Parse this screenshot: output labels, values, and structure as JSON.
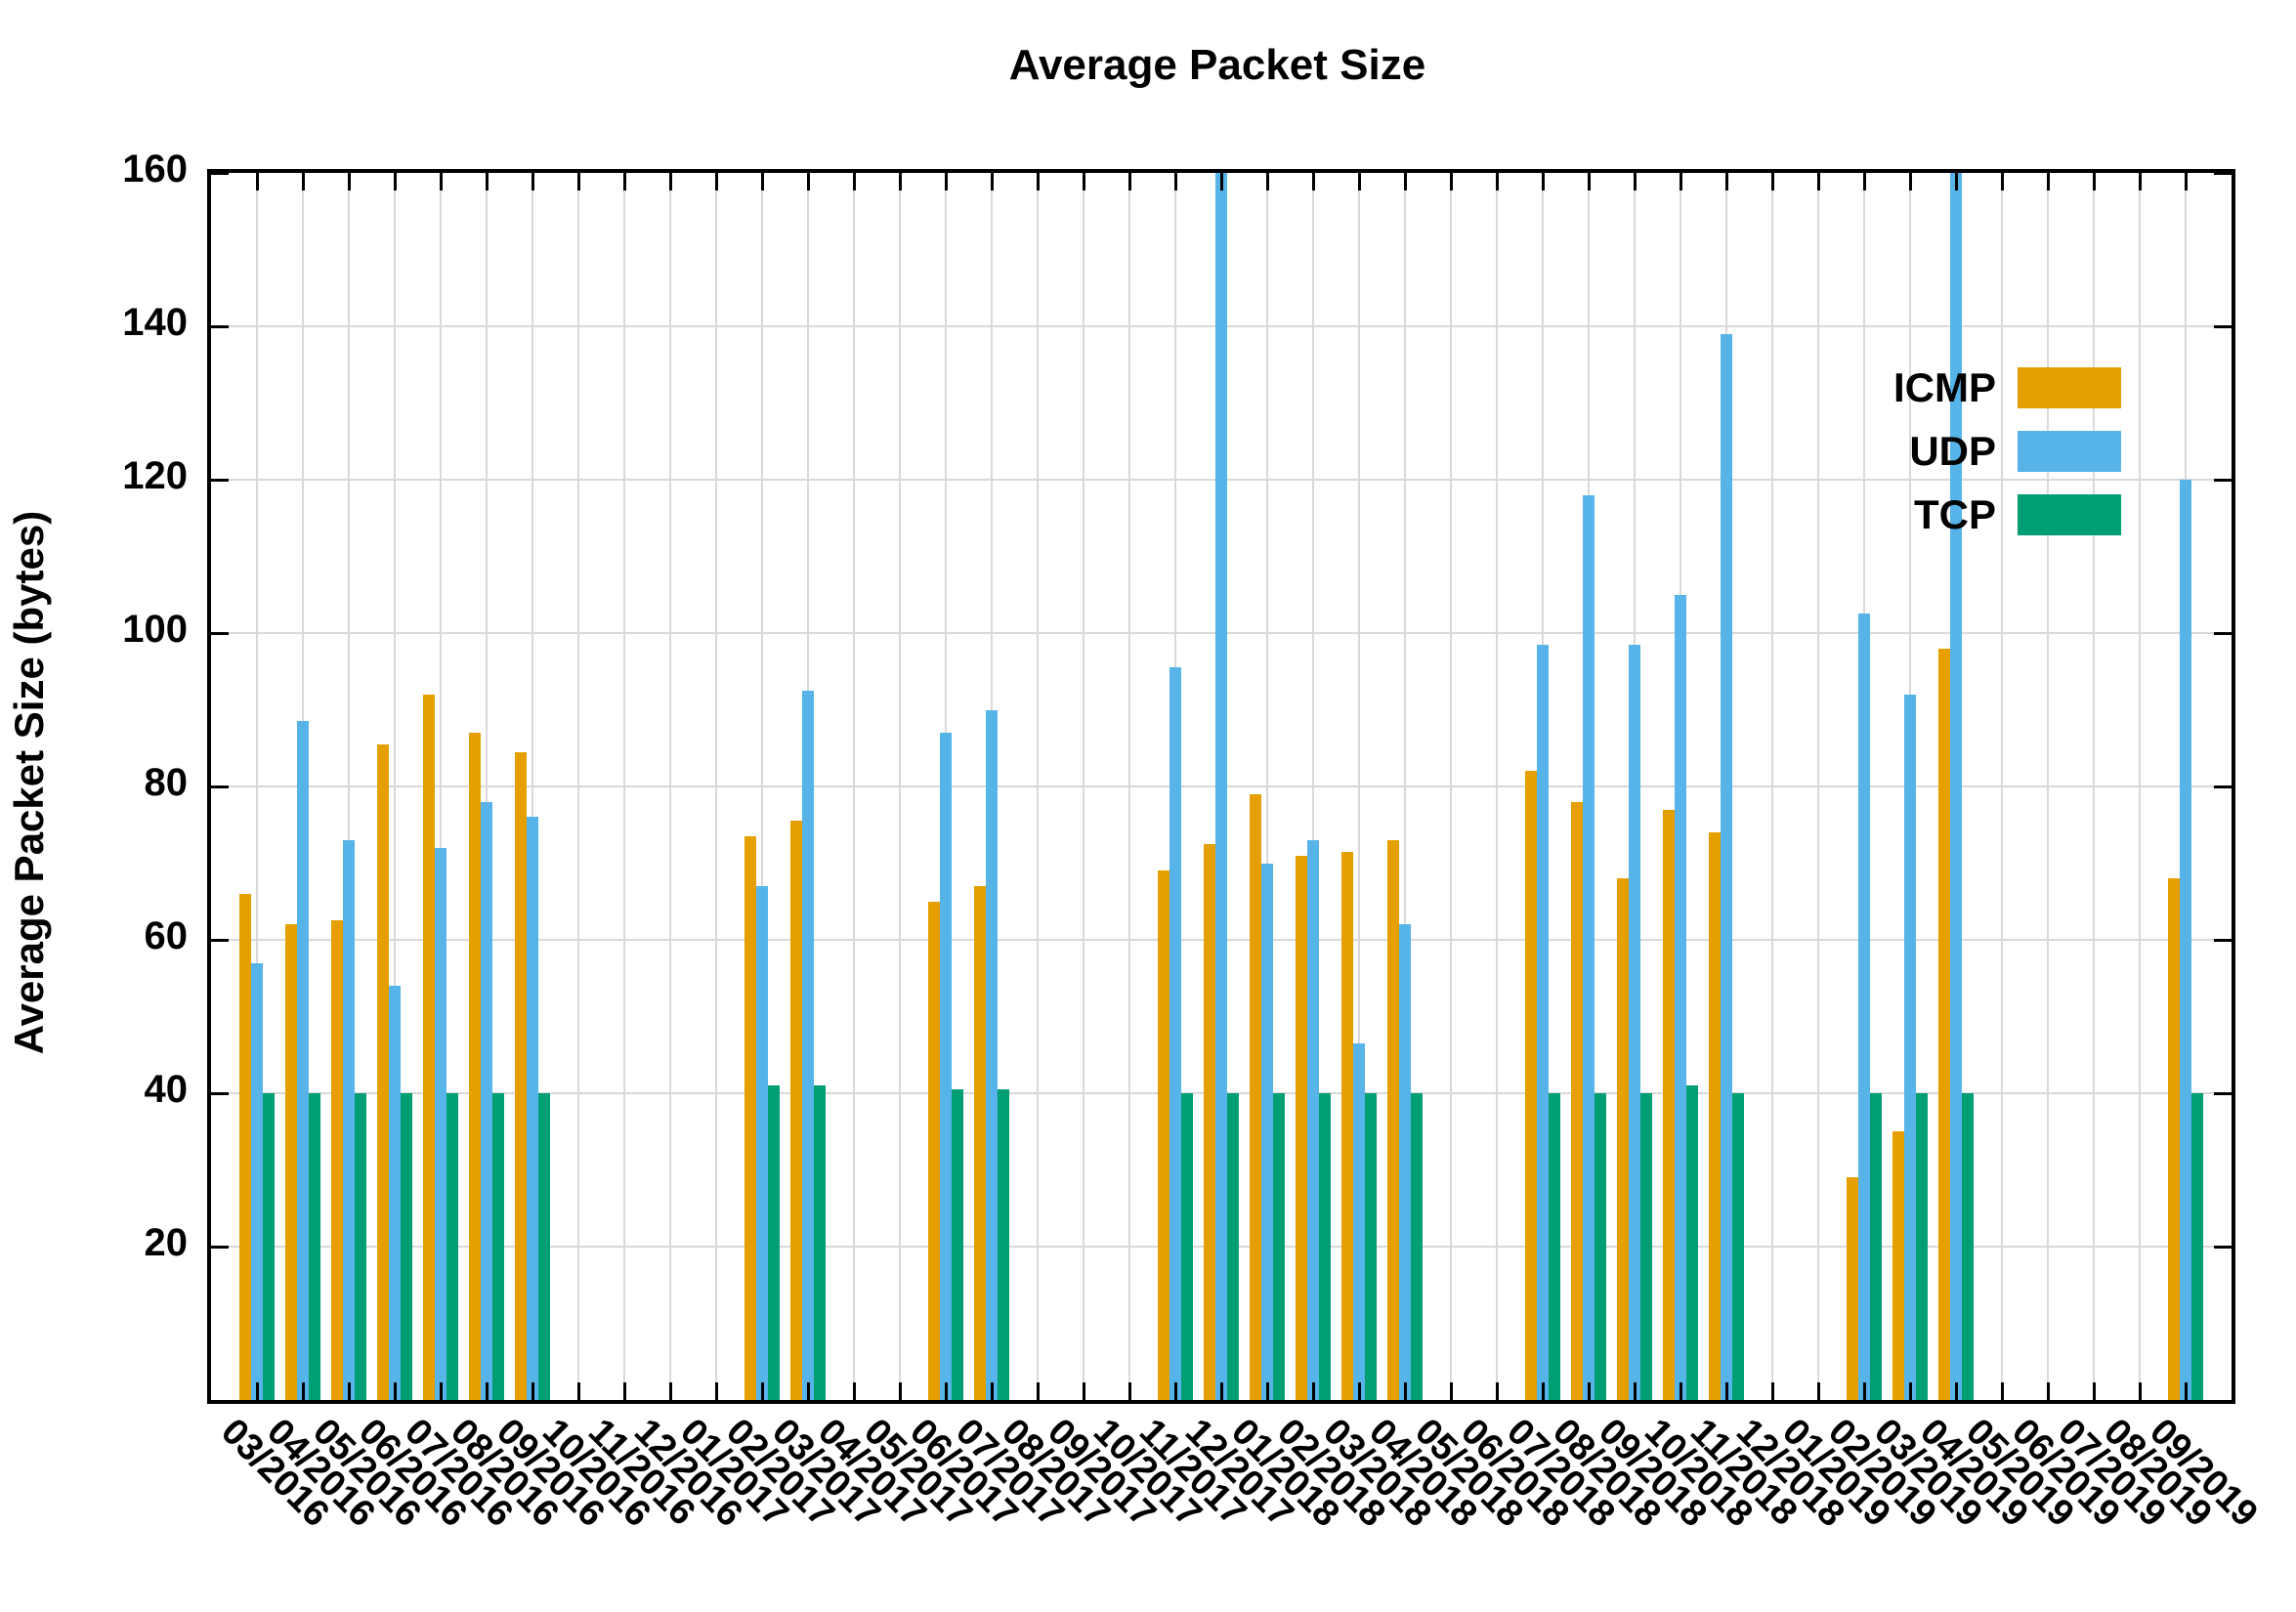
{
  "title": "Average Packet Size",
  "y_axis": {
    "label": "Average Packet Size (bytes)",
    "min": 0,
    "max": 160,
    "tick_step": 20,
    "tick_labels": [
      "20",
      "40",
      "60",
      "80",
      "100",
      "120",
      "140",
      "160"
    ]
  },
  "x_axis": {
    "tick_label_rotation_deg": 45,
    "labels": [
      "03/2016",
      "04/2016",
      "05/2016",
      "06/2016",
      "07/2016",
      "08/2016",
      "09/2016",
      "10/2016",
      "11/2016",
      "12/2016",
      "01/2017",
      "02/2017",
      "03/2017",
      "04/2017",
      "05/2017",
      "06/2017",
      "07/2017",
      "08/2017",
      "09/2017",
      "10/2017",
      "11/2017",
      "12/2017",
      "01/2018",
      "02/2018",
      "03/2018",
      "04/2018",
      "05/2018",
      "06/2018",
      "07/2018",
      "08/2018",
      "09/2018",
      "10/2018",
      "11/2018",
      "12/2018",
      "01/2019",
      "02/2019",
      "03/2019",
      "04/2019",
      "05/2019",
      "06/2019",
      "07/2019",
      "08/2019",
      "09/2019"
    ]
  },
  "legend": {
    "position": "top-right-inside",
    "entries": [
      {
        "name": "ICMP",
        "color": "#E69F00"
      },
      {
        "name": "UDP",
        "color": "#56B4E9"
      },
      {
        "name": "TCP",
        "color": "#009E73"
      }
    ]
  },
  "colors": {
    "icmp": "#E69F00",
    "udp": "#56B4E9",
    "tcp": "#009E73",
    "grid": "#d9d9d9",
    "axis": "#000000",
    "background": "#ffffff"
  },
  "chart_data": {
    "type": "bar",
    "title": "Average Packet Size",
    "xlabel": "",
    "ylabel": "Average Packet Size (bytes)",
    "ylim": [
      0,
      160
    ],
    "grid": true,
    "legend_position": "top-right-inside",
    "categories": [
      "03/2016",
      "04/2016",
      "05/2016",
      "06/2016",
      "07/2016",
      "08/2016",
      "09/2016",
      "10/2016",
      "11/2016",
      "12/2016",
      "01/2017",
      "02/2017",
      "03/2017",
      "04/2017",
      "05/2017",
      "06/2017",
      "07/2017",
      "08/2017",
      "09/2017",
      "10/2017",
      "11/2017",
      "12/2017",
      "01/2018",
      "02/2018",
      "03/2018",
      "04/2018",
      "05/2018",
      "06/2018",
      "07/2018",
      "08/2018",
      "09/2018",
      "10/2018",
      "11/2018",
      "12/2018",
      "01/2019",
      "02/2019",
      "03/2019",
      "04/2019",
      "05/2019",
      "06/2019",
      "07/2019",
      "08/2019",
      "09/2019"
    ],
    "series": [
      {
        "name": "ICMP",
        "color": "#E69F00",
        "values": [
          66,
          62,
          62.5,
          85.5,
          92,
          87,
          84.5,
          null,
          null,
          null,
          null,
          73.5,
          75.5,
          null,
          null,
          65,
          67,
          null,
          null,
          null,
          69,
          72.5,
          79,
          71,
          71.5,
          73,
          null,
          null,
          82,
          78,
          68,
          77,
          74,
          null,
          null,
          29,
          35,
          98,
          null,
          null,
          null,
          null,
          68
        ]
      },
      {
        "name": "UDP",
        "color": "#56B4E9",
        "values": [
          57,
          88.5,
          73,
          54,
          72,
          78,
          76,
          null,
          null,
          null,
          null,
          67,
          92.5,
          null,
          null,
          87,
          90,
          null,
          null,
          null,
          95.5,
          160,
          70,
          73,
          46.5,
          62,
          null,
          null,
          98.5,
          118,
          98.5,
          105,
          139,
          null,
          null,
          102.5,
          92,
          160,
          null,
          null,
          null,
          null,
          120
        ]
      },
      {
        "name": "TCP",
        "color": "#009E73",
        "values": [
          40,
          40,
          40,
          40,
          40,
          40,
          40,
          null,
          null,
          null,
          null,
          41,
          41,
          null,
          null,
          40.5,
          40.5,
          null,
          null,
          null,
          40,
          40,
          40,
          40,
          40,
          40,
          null,
          null,
          40,
          40,
          40,
          41,
          40,
          null,
          null,
          40,
          40,
          40,
          null,
          null,
          null,
          null,
          40
        ]
      }
    ],
    "clipped_at_ymax": [
      {
        "series": "UDP",
        "category": "12/2017"
      },
      {
        "series": "UDP",
        "category": "04/2019"
      }
    ]
  }
}
